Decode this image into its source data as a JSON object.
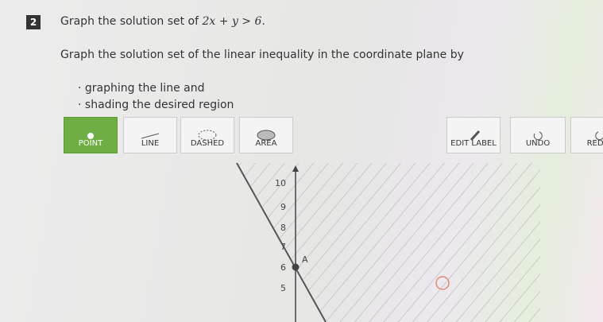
{
  "question": {
    "number": "2",
    "prompt": "Graph the solution set of",
    "math": "2x + y > 6",
    "end": ".",
    "instruction": "Graph the solution set of the linear inequality in the coordinate plane by",
    "bullets": [
      "graphing the line and",
      "shading the desired region"
    ]
  },
  "toolbar": {
    "left": [
      "POINT",
      "LINE",
      "DASHED",
      "AREA"
    ],
    "right": [
      "EDIT LABEL",
      "UNDO",
      "REDO"
    ]
  },
  "graph": {
    "yticks": [
      10,
      9,
      8,
      7,
      6,
      5
    ],
    "point_label": "A"
  }
}
